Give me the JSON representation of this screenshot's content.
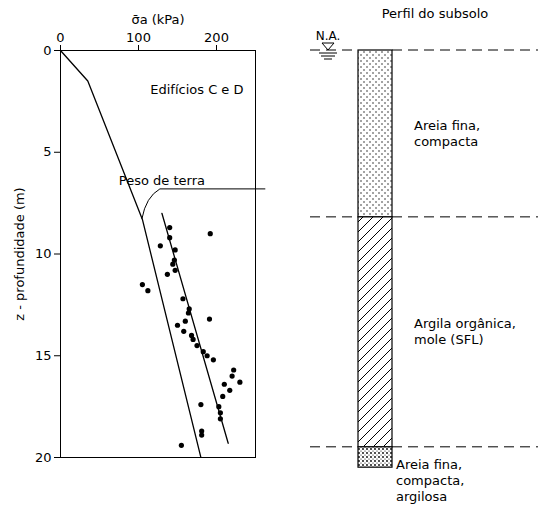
{
  "chart_data": {
    "type": "scatter",
    "x_label": "σ̄a (kPa)",
    "y_label": "z - profundidade (m)",
    "xlim": [
      0,
      250
    ],
    "xticks": [
      0,
      100,
      200
    ],
    "ylim": [
      0,
      20
    ],
    "yticks": [
      0,
      5,
      10,
      15,
      20
    ],
    "annotations": [
      {
        "text": "Edifícios C e D"
      }
    ],
    "series": [
      {
        "name": "Peso de terra",
        "type": "line",
        "color": "#000000",
        "x": [
          0,
          35,
          105,
          180
        ],
        "y": [
          0,
          1.5,
          8.3,
          20
        ]
      },
      {
        "type": "line",
        "color": "#000000",
        "x": [
          130,
          215
        ],
        "y": [
          8,
          19.3
        ]
      },
      {
        "type": "scatter",
        "marker": "circle",
        "color": "#000000",
        "x": [
          140,
          192,
          128,
          140,
          147,
          146,
          144,
          147,
          137,
          105,
          112,
          157,
          165,
          164,
          160,
          191,
          150,
          158,
          170,
          175,
          168,
          183,
          188,
          196,
          222,
          220,
          230,
          210,
          217,
          208,
          203,
          180,
          205,
          205,
          181,
          181,
          155
        ],
        "y": [
          8.7,
          9.0,
          9.6,
          9.2,
          9.8,
          10.3,
          10.5,
          10.8,
          11.0,
          11.5,
          11.8,
          12.2,
          12.7,
          12.9,
          13.3,
          13.2,
          13.5,
          13.8,
          14.2,
          14.5,
          14.0,
          14.8,
          15.0,
          15.2,
          15.7,
          16.0,
          16.3,
          16.4,
          16.7,
          17.0,
          17.5,
          17.4,
          17.8,
          18.1,
          18.7,
          18.9,
          19.4
        ]
      }
    ],
    "profile": {
      "title": "Perfil do subsolo",
      "water_level_label": "N.A.",
      "water_level": 0,
      "layers": [
        {
          "label": "Areia fina,\ncompacta",
          "top": 0,
          "bottom": 8.2
        },
        {
          "label": "Argila orgânica,\nmole (SFL)",
          "top": 8.2,
          "bottom": 19.5
        },
        {
          "label": "Areia fina,\ncompacta,\nargilosa",
          "top": 19.5,
          "bottom": 20.5
        }
      ]
    }
  }
}
